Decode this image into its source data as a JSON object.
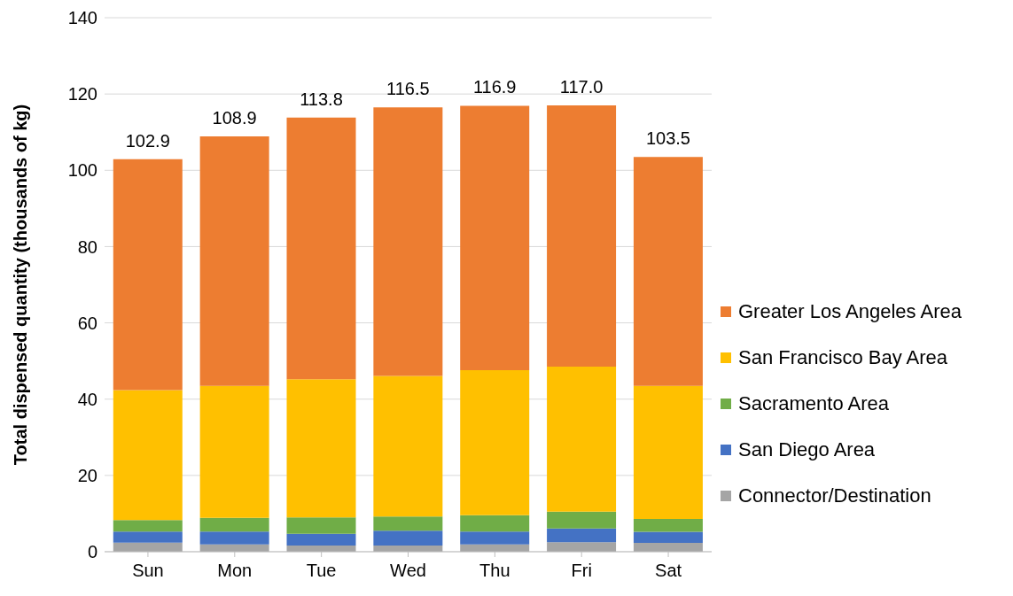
{
  "chart_data": {
    "type": "bar",
    "stacked": true,
    "ylabel": "Total dispensed quantity (thousands of kg)",
    "categories": [
      "Sun",
      "Mon",
      "Tue",
      "Wed",
      "Thu",
      "Fri",
      "Sat"
    ],
    "series": [
      {
        "name": "Connector/Destination",
        "color": "#a5a5a5",
        "values": [
          2.4,
          1.9,
          1.6,
          1.6,
          1.9,
          2.5,
          2.3
        ]
      },
      {
        "name": "San Diego Area",
        "color": "#4472c4",
        "values": [
          2.9,
          3.4,
          3.1,
          3.9,
          3.4,
          3.6,
          2.9
        ]
      },
      {
        "name": "Sacramento Area",
        "color": "#70ad47",
        "values": [
          3.0,
          3.6,
          4.3,
          3.7,
          4.3,
          4.4,
          3.4
        ]
      },
      {
        "name": "San Francisco Bay Area",
        "color": "#ffc000",
        "values": [
          34.1,
          34.6,
          36.2,
          36.9,
          38.0,
          38.0,
          34.9
        ]
      },
      {
        "name": "Greater Los Angeles Area",
        "color": "#ed7d31",
        "values": [
          60.5,
          65.4,
          68.6,
          70.4,
          69.3,
          68.5,
          60.0
        ]
      }
    ],
    "totals": [
      "102.9",
      "108.9",
      "113.8",
      "116.5",
      "116.9",
      "117.0",
      "103.5"
    ],
    "ylim": [
      0,
      140
    ],
    "yticks": [
      0,
      20,
      40,
      60,
      80,
      100,
      120,
      140
    ],
    "grid": "y",
    "legend": "right"
  }
}
